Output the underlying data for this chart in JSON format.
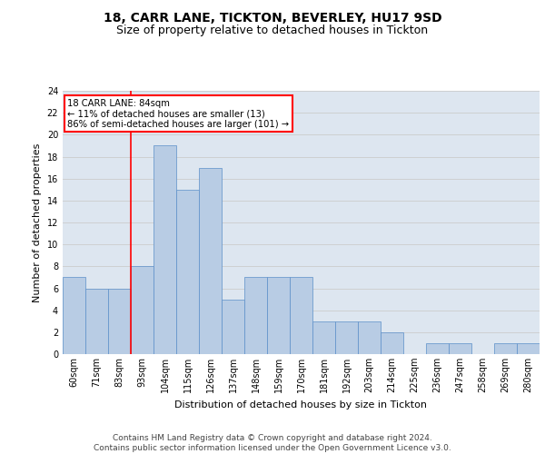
{
  "title": "18, CARR LANE, TICKTON, BEVERLEY, HU17 9SD",
  "subtitle": "Size of property relative to detached houses in Tickton",
  "xlabel": "Distribution of detached houses by size in Tickton",
  "ylabel": "Number of detached properties",
  "categories": [
    "60sqm",
    "71sqm",
    "83sqm",
    "93sqm",
    "104sqm",
    "115sqm",
    "126sqm",
    "137sqm",
    "148sqm",
    "159sqm",
    "170sqm",
    "181sqm",
    "192sqm",
    "203sqm",
    "214sqm",
    "225sqm",
    "236sqm",
    "247sqm",
    "258sqm",
    "269sqm",
    "280sqm"
  ],
  "values": [
    7,
    6,
    6,
    8,
    19,
    15,
    17,
    5,
    7,
    7,
    7,
    3,
    3,
    3,
    2,
    0,
    1,
    1,
    0,
    1,
    1
  ],
  "bar_color": "#b8cce4",
  "bar_edge_color": "#5b8fc9",
  "vline_index": 2.5,
  "annotation_text": "18 CARR LANE: 84sqm\n← 11% of detached houses are smaller (13)\n86% of semi-detached houses are larger (101) →",
  "annotation_box_color": "white",
  "annotation_box_edge_color": "red",
  "vline_color": "red",
  "ylim": [
    0,
    24
  ],
  "yticks": [
    0,
    2,
    4,
    6,
    8,
    10,
    12,
    14,
    16,
    18,
    20,
    22,
    24
  ],
  "grid_color": "#cccccc",
  "background_color": "#dde6f0",
  "title_fontsize": 10,
  "subtitle_fontsize": 9,
  "axis_label_fontsize": 8,
  "tick_fontsize": 7,
  "footer_text": "Contains HM Land Registry data © Crown copyright and database right 2024.\nContains public sector information licensed under the Open Government Licence v3.0.",
  "footer_fontsize": 6.5
}
